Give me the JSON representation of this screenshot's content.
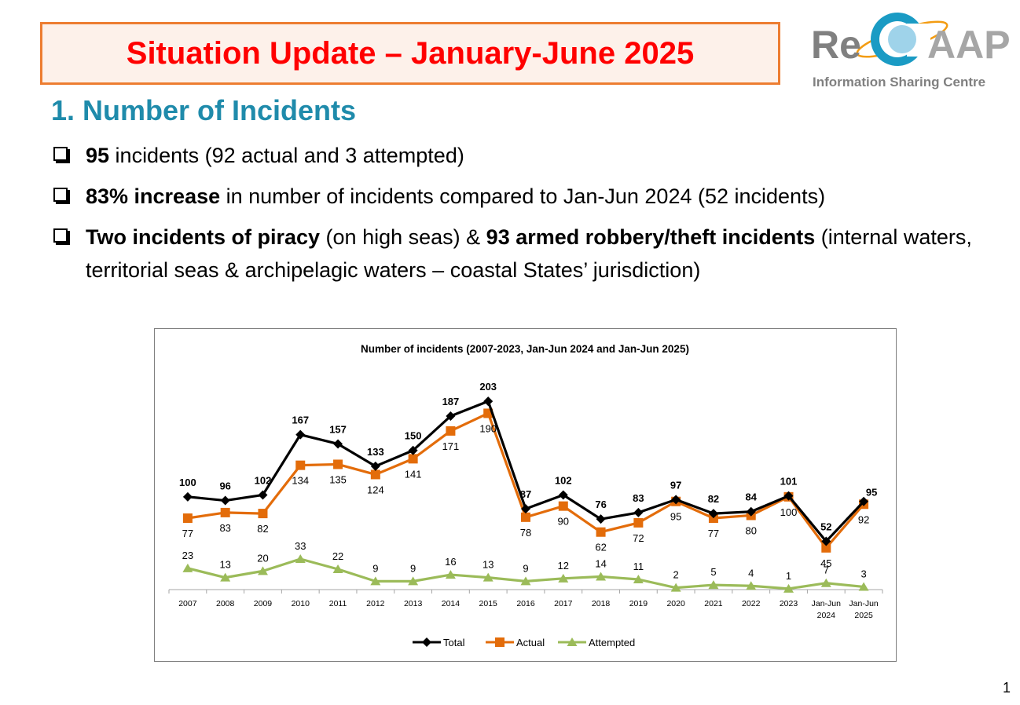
{
  "slide": {
    "title": "Situation Update – January-June 2025",
    "heading": "1. Number of Incidents",
    "page_number": "1"
  },
  "logo": {
    "text_re": "Re",
    "text_aap": "AAP",
    "tagline": "Information Sharing Centre"
  },
  "bullets": [
    {
      "parts": [
        {
          "text": "95",
          "bold": true
        },
        {
          "text": " incidents (92 actual and 3 attempted)",
          "bold": false
        }
      ]
    },
    {
      "parts": [
        {
          "text": "83% increase",
          "bold": true
        },
        {
          "text": " in number of incidents compared to Jan-Jun 2024 (52 incidents)",
          "bold": false
        }
      ]
    },
    {
      "parts": [
        {
          "text": "Two incidents of piracy",
          "bold": true
        },
        {
          "text": " (on high seas) & ",
          "bold": false
        },
        {
          "text": "93 armed robbery/theft incidents",
          "bold": true
        },
        {
          "text": " (internal waters, territorial seas & archipelagic waters – coastal States’ jurisdiction)",
          "bold": false
        }
      ]
    }
  ],
  "colors": {
    "title_red": "#ff0000",
    "title_border": "#ed7d31",
    "heading_teal": "#1f8bab",
    "total": "#000000",
    "actual": "#e36c0a",
    "attempted": "#9bbb59"
  },
  "chart_data": {
    "type": "line",
    "title": "Number of incidents (2007-2023,  Jan-Jun 2024 and Jan-Jun 2025)",
    "categories": [
      "2007",
      "2008",
      "2009",
      "2010",
      "2011",
      "2012",
      "2013",
      "2014",
      "2015",
      "2016",
      "2017",
      "2018",
      "2019",
      "2020",
      "2021",
      "2022",
      "2023",
      "Jan-Jun 2024",
      "Jan-Jun 2025"
    ],
    "series": [
      {
        "name": "Total",
        "marker": "diamond",
        "values": [
          100,
          96,
          102,
          167,
          157,
          133,
          150,
          187,
          203,
          87,
          102,
          76,
          83,
          97,
          82,
          84,
          101,
          52,
          95
        ]
      },
      {
        "name": "Actual",
        "marker": "square",
        "values": [
          77,
          83,
          82,
          134,
          135,
          124,
          141,
          171,
          190,
          78,
          90,
          62,
          72,
          95,
          77,
          80,
          100,
          45,
          92
        ]
      },
      {
        "name": "Attempted",
        "marker": "triangle",
        "values": [
          23,
          13,
          20,
          33,
          22,
          9,
          9,
          16,
          13,
          9,
          12,
          14,
          11,
          2,
          5,
          4,
          1,
          7,
          3
        ]
      }
    ],
    "ylim": [
      0,
      230
    ],
    "grid": false,
    "legend": "bottom"
  }
}
